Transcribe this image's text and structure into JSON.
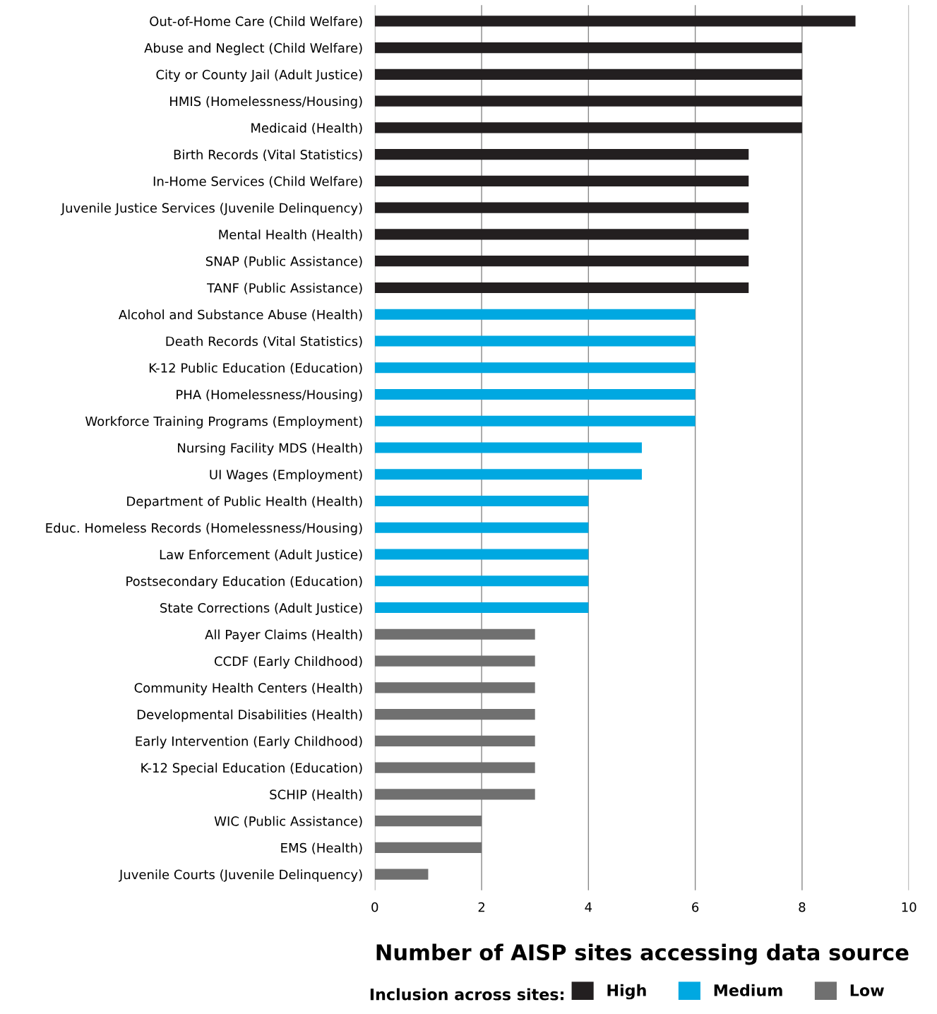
{
  "chart_data": {
    "type": "bar",
    "orientation": "horizontal",
    "categories": [
      "Out-of-Home Care (Child Welfare)",
      "Abuse and Neglect (Child Welfare)",
      "City or County Jail (Adult Justice)",
      "HMIS (Homelessness/Housing)",
      "Medicaid (Health)",
      "Birth Records (Vital Statistics)",
      "In-Home Services (Child Welfare)",
      "Juvenile Justice Services (Juvenile Delinquency)",
      "Mental Health (Health)",
      "SNAP (Public Assistance)",
      "TANF (Public Assistance)",
      "Alcohol and Substance Abuse (Health)",
      "Death Records (Vital Statistics)",
      "K-12 Public Education (Education)",
      "PHA (Homelessness/Housing)",
      "Workforce Training Programs (Employment)",
      "Nursing Facility MDS (Health)",
      "UI Wages (Employment)",
      "Department of Public Health (Health)",
      "Educ. Homeless Records (Homelessness/Housing)",
      "Law Enforcement (Adult Justice)",
      "Postsecondary Education (Education)",
      "State Corrections (Adult Justice)",
      "All Payer Claims (Health)",
      "CCDF (Early Childhood)",
      "Community Health Centers (Health)",
      "Developmental Disabilities (Health)",
      "Early Intervention (Early Childhood)",
      "K-12 Special Education (Education)",
      "SCHIP (Health)",
      "WIC (Public Assistance)",
      "EMS (Health)",
      "Juvenile Courts (Juvenile Delinquency)"
    ],
    "series": [
      {
        "name": "High",
        "color": "#231f20",
        "values": [
          9,
          8,
          8,
          8,
          8,
          7,
          7,
          7,
          7,
          7,
          7,
          null,
          null,
          null,
          null,
          null,
          null,
          null,
          null,
          null,
          null,
          null,
          null,
          null,
          null,
          null,
          null,
          null,
          null,
          null,
          null,
          null,
          null
        ]
      },
      {
        "name": "Medium",
        "color": "#00a8e1",
        "values": [
          null,
          null,
          null,
          null,
          null,
          null,
          null,
          null,
          null,
          null,
          null,
          6,
          6,
          6,
          6,
          6,
          5,
          5,
          4,
          4,
          4,
          4,
          4,
          null,
          null,
          null,
          null,
          null,
          null,
          null,
          null,
          null,
          null
        ]
      },
      {
        "name": "Low",
        "color": "#707070",
        "values": [
          null,
          null,
          null,
          null,
          null,
          null,
          null,
          null,
          null,
          null,
          null,
          null,
          null,
          null,
          null,
          null,
          null,
          null,
          null,
          null,
          null,
          null,
          null,
          3,
          3,
          3,
          3,
          3,
          3,
          3,
          2,
          2,
          1
        ]
      }
    ],
    "xlim": [
      0,
      10
    ],
    "xticks": [
      0,
      2,
      4,
      6,
      8,
      10
    ],
    "grid": "x",
    "xlabel": "Number of AISP sites accessing data source",
    "legend": "bottom",
    "legend_title": "Inclusion across sites:"
  }
}
